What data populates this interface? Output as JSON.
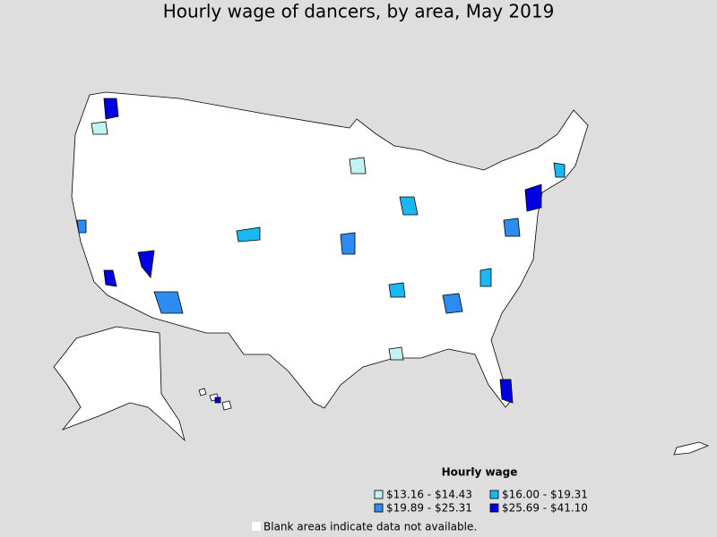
{
  "title": "Hourly wage of dancers, by area, May 2019",
  "legend": {
    "title": "Hourly wage",
    "items": [
      {
        "label": "$13.16 - $14.43",
        "color": "#c4f2f2"
      },
      {
        "label": "$16.00 - $19.31",
        "color": "#1ab8f2"
      },
      {
        "label": "$19.89 - $25.31",
        "color": "#2e8cf0"
      },
      {
        "label": "$25.69 - $41.10",
        "color": "#0000e0"
      }
    ]
  },
  "note": "Blank areas indicate data not available."
}
